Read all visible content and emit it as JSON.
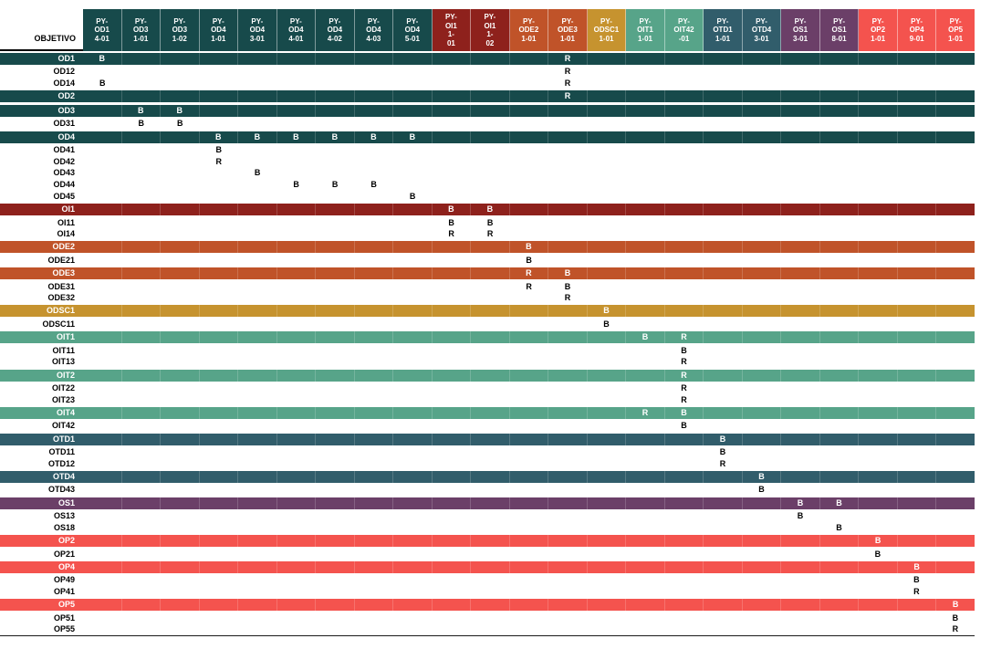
{
  "table": {
    "corner_label": "OBJETIVO",
    "colors": {
      "teal": "#174A4B",
      "maroon": "#8E211C",
      "rust": "#C05329",
      "gold": "#C6932F",
      "green": "#57A489",
      "slate": "#315D6B",
      "purple": "#6B3F68",
      "coral": "#F4534E"
    },
    "columns": [
      {
        "id": "PY-OD1 4-01",
        "lines": [
          "PY-",
          "OD1",
          "4-01"
        ],
        "group": "teal"
      },
      {
        "id": "PY-OD3 1-01",
        "lines": [
          "PY-",
          "OD3",
          "1-01"
        ],
        "group": "teal"
      },
      {
        "id": "PY-OD3 1-02",
        "lines": [
          "PY-",
          "OD3",
          "1-02"
        ],
        "group": "teal"
      },
      {
        "id": "PY-OD4 1-01",
        "lines": [
          "PY-",
          "OD4",
          "1-01"
        ],
        "group": "teal"
      },
      {
        "id": "PY-OD4 3-01",
        "lines": [
          "PY-",
          "OD4",
          "3-01"
        ],
        "group": "teal"
      },
      {
        "id": "PY-OD4 4-01",
        "lines": [
          "PY-",
          "OD4",
          "4-01"
        ],
        "group": "teal"
      },
      {
        "id": "PY-OD4 4-02",
        "lines": [
          "PY-",
          "OD4",
          "4-02"
        ],
        "group": "teal"
      },
      {
        "id": "PY-OD4 4-03",
        "lines": [
          "PY-",
          "OD4",
          "4-03"
        ],
        "group": "teal"
      },
      {
        "id": "PY-OD4 5-01",
        "lines": [
          "PY-",
          "OD4",
          "5-01"
        ],
        "group": "teal"
      },
      {
        "id": "PY-OI1 1-01",
        "lines": [
          "PY-",
          "OI1",
          "1-",
          "01"
        ],
        "group": "maroon"
      },
      {
        "id": "PY-OI1 1-02",
        "lines": [
          "PY-",
          "OI1",
          "1-",
          "02"
        ],
        "group": "maroon"
      },
      {
        "id": "PY-ODE2 1-01",
        "lines": [
          "PY-",
          "ODE2",
          "1-01"
        ],
        "group": "rust"
      },
      {
        "id": "PY-ODE3 1-01",
        "lines": [
          "PY-",
          "ODE3",
          "1-01"
        ],
        "group": "rust"
      },
      {
        "id": "PY-ODSC1 1-01",
        "lines": [
          "PY-",
          "ODSC1",
          "1-01"
        ],
        "group": "gold"
      },
      {
        "id": "PY-OIT1 1-01",
        "lines": [
          "PY-",
          "OIT1",
          "1-01"
        ],
        "group": "green"
      },
      {
        "id": "PY-OIT42 -01",
        "lines": [
          "PY-",
          "OIT42",
          "-01"
        ],
        "group": "green"
      },
      {
        "id": "PY-OTD1 1-01",
        "lines": [
          "PY-",
          "OTD1",
          "1-01"
        ],
        "group": "slate"
      },
      {
        "id": "PY-OTD4 3-01",
        "lines": [
          "PY-",
          "OTD4",
          "3-01"
        ],
        "group": "slate"
      },
      {
        "id": "PY-OS1 3-01",
        "lines": [
          "PY-",
          "OS1",
          "3-01"
        ],
        "group": "purple"
      },
      {
        "id": "PY-OS1 8-01",
        "lines": [
          "PY-",
          "OS1",
          "8-01"
        ],
        "group": "purple"
      },
      {
        "id": "PY-OP2 1-01",
        "lines": [
          "PY-",
          "OP2",
          "1-01"
        ],
        "group": "coral"
      },
      {
        "id": "PY-OP4 9-01",
        "lines": [
          "PY-",
          "OP4",
          "9-01"
        ],
        "group": "coral"
      },
      {
        "id": "PY-OP5 1-01",
        "lines": [
          "PY-",
          "OP5",
          "1-01"
        ],
        "group": "coral"
      }
    ],
    "rows": [
      {
        "label": "OD1",
        "group": true,
        "color": "teal",
        "marks": {
          "1": "B",
          "13": "R"
        }
      },
      {
        "label": "OD12",
        "group": false,
        "marks": {
          "13": "R"
        }
      },
      {
        "label": "OD14",
        "group": false,
        "marks": {
          "1": "B",
          "13": "R"
        }
      },
      {
        "label": "OD2",
        "group": true,
        "color": "teal",
        "marks": {
          "13": "R"
        }
      },
      {
        "label": "OD3",
        "group": true,
        "color": "teal",
        "marks": {
          "2": "B",
          "3": "B"
        }
      },
      {
        "label": "OD31",
        "group": false,
        "marks": {
          "2": "B",
          "3": "B"
        }
      },
      {
        "label": "OD4",
        "group": true,
        "color": "teal",
        "marks": {
          "4": "B",
          "5": "B",
          "6": "B",
          "7": "B",
          "8": "B",
          "9": "B"
        }
      },
      {
        "label": "OD41",
        "group": false,
        "marks": {
          "4": "B"
        }
      },
      {
        "label": "OD42",
        "group": false,
        "marks": {
          "4": "R"
        }
      },
      {
        "label": "OD43",
        "group": false,
        "marks": {
          "5": "B"
        }
      },
      {
        "label": "OD44",
        "group": false,
        "marks": {
          "6": "B",
          "7": "B",
          "8": "B"
        }
      },
      {
        "label": "OD45",
        "group": false,
        "marks": {
          "9": "B"
        }
      },
      {
        "label": "OI1",
        "group": true,
        "color": "maroon",
        "marks": {
          "10": "B",
          "11": "B"
        }
      },
      {
        "label": "OI11",
        "group": false,
        "marks": {
          "10": "B",
          "11": "B"
        }
      },
      {
        "label": "OI14",
        "group": false,
        "marks": {
          "10": "R",
          "11": "R"
        }
      },
      {
        "label": "ODE2",
        "group": true,
        "color": "rust",
        "marks": {
          "12": "B"
        }
      },
      {
        "label": "ODE21",
        "group": false,
        "marks": {
          "12": "B"
        }
      },
      {
        "label": "ODE3",
        "group": true,
        "color": "rust",
        "marks": {
          "12": "R",
          "13": "B"
        }
      },
      {
        "label": "ODE31",
        "group": false,
        "marks": {
          "12": "R",
          "13": "B"
        }
      },
      {
        "label": "ODE32",
        "group": false,
        "marks": {
          "13": "R"
        }
      },
      {
        "label": "ODSC1",
        "group": true,
        "color": "gold",
        "marks": {
          "14": "B"
        }
      },
      {
        "label": "ODSC11",
        "group": false,
        "marks": {
          "14": "B"
        }
      },
      {
        "label": "OIT1",
        "group": true,
        "color": "green",
        "marks": {
          "15": "B",
          "16": "R"
        }
      },
      {
        "label": "OIT11",
        "group": false,
        "marks": {
          "16": "B"
        }
      },
      {
        "label": "OIT13",
        "group": false,
        "marks": {
          "16": "R"
        }
      },
      {
        "label": "OIT2",
        "group": true,
        "color": "green",
        "marks": {
          "16": "R"
        }
      },
      {
        "label": "OIT22",
        "group": false,
        "marks": {
          "16": "R"
        }
      },
      {
        "label": "OIT23",
        "group": false,
        "marks": {
          "16": "R"
        }
      },
      {
        "label": "OIT4",
        "group": true,
        "color": "green",
        "marks": {
          "15": "R",
          "16": "B"
        }
      },
      {
        "label": "OIT42",
        "group": false,
        "marks": {
          "16": "B"
        }
      },
      {
        "label": "OTD1",
        "group": true,
        "color": "slate",
        "marks": {
          "17": "B"
        }
      },
      {
        "label": "OTD11",
        "group": false,
        "marks": {
          "17": "B"
        }
      },
      {
        "label": "OTD12",
        "group": false,
        "marks": {
          "17": "R"
        }
      },
      {
        "label": "OTD4",
        "group": true,
        "color": "slate",
        "marks": {
          "18": "B"
        }
      },
      {
        "label": "OTD43",
        "group": false,
        "marks": {
          "18": "B"
        }
      },
      {
        "label": "OS1",
        "group": true,
        "color": "purple",
        "marks": {
          "19": "B",
          "20": "B"
        }
      },
      {
        "label": "OS13",
        "group": false,
        "marks": {
          "19": "B"
        }
      },
      {
        "label": "OS18",
        "group": false,
        "marks": {
          "20": "B"
        }
      },
      {
        "label": "OP2",
        "group": true,
        "color": "coral",
        "marks": {
          "21": "B"
        }
      },
      {
        "label": "OP21",
        "group": false,
        "marks": {
          "21": "B"
        }
      },
      {
        "label": "OP4",
        "group": true,
        "color": "coral",
        "marks": {
          "22": "B"
        }
      },
      {
        "label": "OP49",
        "group": false,
        "marks": {
          "22": "B"
        }
      },
      {
        "label": "OP41",
        "group": false,
        "marks": {
          "22": "R"
        }
      },
      {
        "label": "OP5",
        "group": true,
        "color": "coral",
        "marks": {
          "23": "B"
        }
      },
      {
        "label": "OP51",
        "group": false,
        "marks": {
          "23": "B"
        }
      },
      {
        "label": "OP55",
        "group": false,
        "marks": {
          "23": "R"
        }
      }
    ]
  }
}
